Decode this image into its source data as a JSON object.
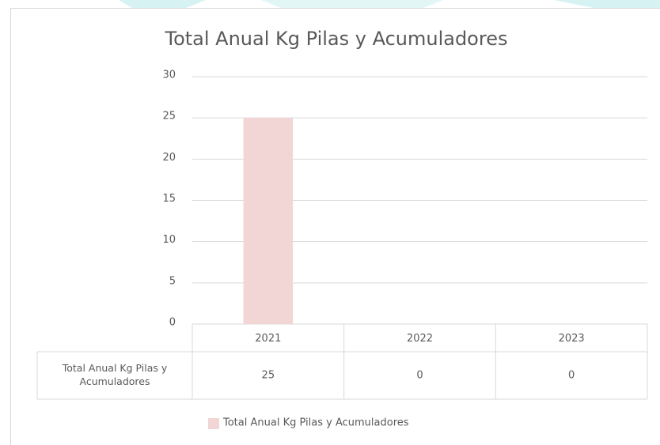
{
  "chart_data": {
    "type": "bar",
    "title": "Total Anual Kg Pilas y Acumuladores",
    "categories": [
      "2021",
      "2022",
      "2023"
    ],
    "series": [
      {
        "name": "Total Anual Kg Pilas y Acumuladores",
        "color": "#f2d5d5",
        "values": [
          25,
          0,
          0
        ]
      }
    ],
    "ylim": [
      0,
      30
    ],
    "yticks": [
      0,
      5,
      10,
      15,
      20,
      25,
      30
    ],
    "grid": true,
    "legend": "bottom",
    "data_table": true
  }
}
